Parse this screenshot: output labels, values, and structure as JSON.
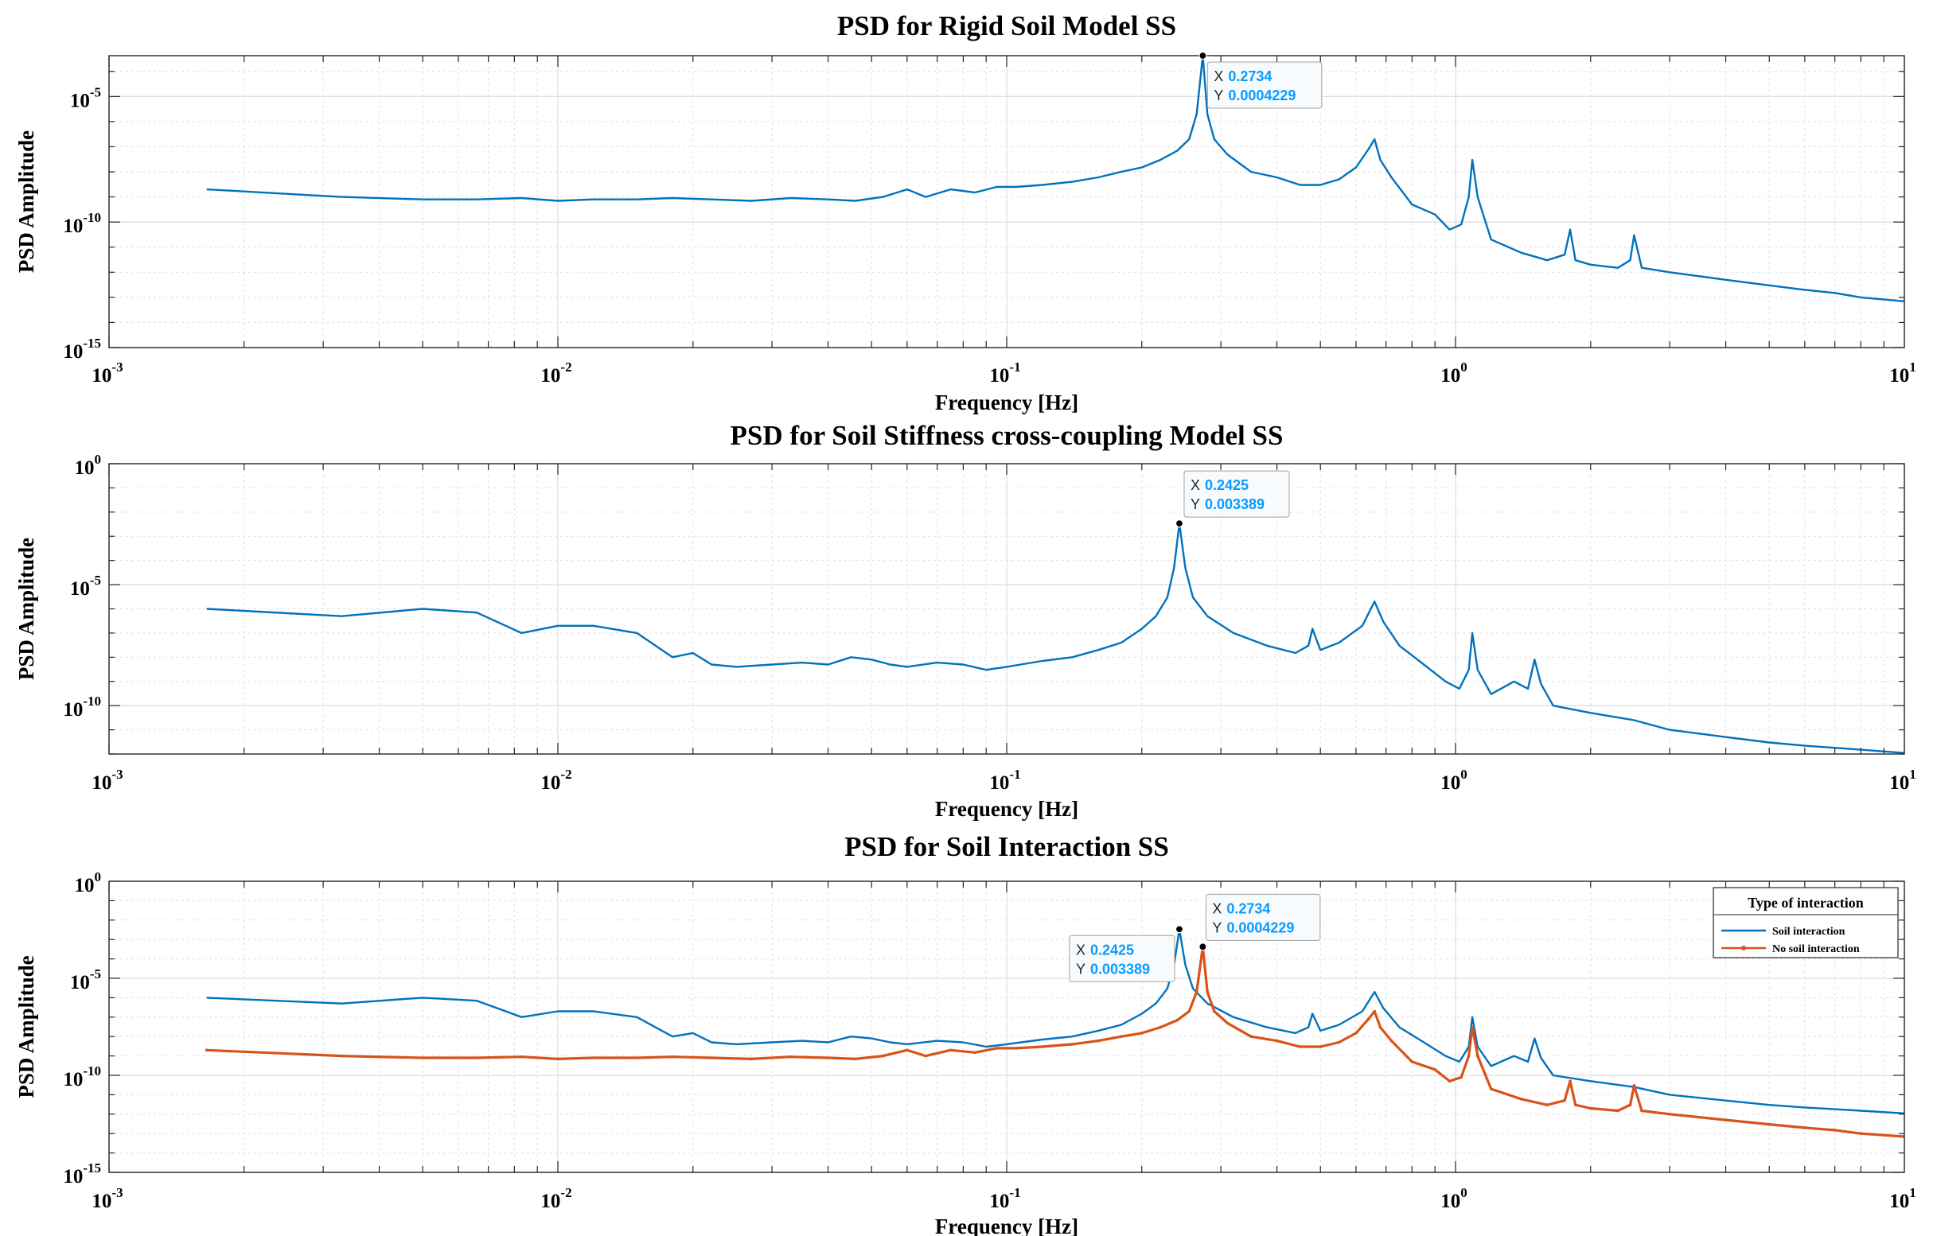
{
  "colors": {
    "soil_interaction": "#0072bd",
    "no_soil_interaction": "#d95319",
    "datatip_value": "#0a9aff",
    "grid": "#dfdfdf",
    "axes": "#262626"
  },
  "chart_data": [
    {
      "type": "line",
      "title": "PSD for Rigid Soil Model SS",
      "xlabel": "Frequency [Hz]",
      "ylabel": "PSD Amplitude",
      "xscale": "log",
      "yscale": "log",
      "xlim": [
        0.001,
        10
      ],
      "ylim": [
        1e-15,
        0.0004229
      ],
      "x_ticks": [
        "10^-3",
        "10^-2",
        "10^-1",
        "10^0",
        "10^1"
      ],
      "y_ticks": [
        "10^-15",
        "10^-10",
        "10^-5"
      ],
      "grid": true,
      "series": [
        {
          "color": "#0072bd",
          "x": [
            0.00165,
            0.0033,
            0.005,
            0.0066,
            0.0083,
            0.01,
            0.012,
            0.015,
            0.018,
            0.022,
            0.027,
            0.033,
            0.04,
            0.046,
            0.053,
            0.06,
            0.066,
            0.075,
            0.085,
            0.095,
            0.105,
            0.12,
            0.14,
            0.16,
            0.18,
            0.2,
            0.22,
            0.24,
            0.255,
            0.265,
            0.2734,
            0.28,
            0.29,
            0.31,
            0.35,
            0.4,
            0.45,
            0.5,
            0.55,
            0.6,
            0.64,
            0.66,
            0.68,
            0.72,
            0.8,
            0.9,
            0.97,
            1.03,
            1.07,
            1.09,
            1.12,
            1.2,
            1.4,
            1.6,
            1.75,
            1.8,
            1.85,
            2.0,
            2.3,
            2.45,
            2.5,
            2.6,
            3.0,
            4.0,
            5.0,
            6.0,
            7.0,
            8.0,
            10.0
          ],
          "y": [
            2e-09,
            1e-09,
            8e-10,
            8e-10,
            9e-10,
            7e-10,
            8e-10,
            8e-10,
            9e-10,
            8e-10,
            7e-10,
            9e-10,
            8e-10,
            7e-10,
            1e-09,
            2e-09,
            1e-09,
            2e-09,
            1.5e-09,
            2.5e-09,
            2.5e-09,
            3e-09,
            4e-09,
            6e-09,
            1e-08,
            1.5e-08,
            3e-08,
            7e-08,
            2e-07,
            2e-06,
            0.0004229,
            2e-06,
            2e-07,
            5e-08,
            1e-08,
            6e-09,
            3e-09,
            3e-09,
            5e-09,
            1.5e-08,
            8e-08,
            2e-07,
            3e-08,
            6e-09,
            5e-10,
            2e-10,
            5e-11,
            8e-11,
            1e-09,
            3e-08,
            1e-09,
            2e-11,
            6e-12,
            3e-12,
            5e-12,
            5e-11,
            3e-12,
            2e-12,
            1.5e-12,
            3e-12,
            3e-11,
            1.5e-12,
            1e-12,
            5e-13,
            3e-13,
            2e-13,
            1.5e-13,
            1e-13,
            7e-14
          ]
        }
      ],
      "datatips": [
        {
          "x_label": "X",
          "x_value": "0.2734",
          "y_label": "Y",
          "y_value": "0.0004229",
          "x": 0.2734,
          "y": 0.0004229
        }
      ]
    },
    {
      "type": "line",
      "title": "PSD for Soil Stiffness cross-coupling Model SS",
      "xlabel": "Frequency [Hz]",
      "ylabel": "PSD Amplitude",
      "xscale": "log",
      "yscale": "log",
      "xlim": [
        0.001,
        10
      ],
      "ylim": [
        1e-12,
        1
      ],
      "x_ticks": [
        "10^-3",
        "10^-2",
        "10^-1",
        "10^0",
        "10^1"
      ],
      "y_ticks": [
        "10^-10",
        "10^-5",
        "10^0"
      ],
      "grid": true,
      "series": [
        {
          "color": "#0072bd",
          "x": [
            0.00165,
            0.0033,
            0.005,
            0.0066,
            0.0083,
            0.01,
            0.012,
            0.015,
            0.018,
            0.02,
            0.022,
            0.025,
            0.03,
            0.035,
            0.04,
            0.045,
            0.05,
            0.055,
            0.06,
            0.07,
            0.08,
            0.09,
            0.1,
            0.12,
            0.14,
            0.16,
            0.18,
            0.2,
            0.215,
            0.228,
            0.236,
            0.2425,
            0.25,
            0.26,
            0.28,
            0.32,
            0.38,
            0.44,
            0.47,
            0.48,
            0.5,
            0.55,
            0.62,
            0.66,
            0.69,
            0.75,
            0.85,
            0.95,
            1.02,
            1.07,
            1.09,
            1.12,
            1.2,
            1.35,
            1.45,
            1.5,
            1.55,
            1.65,
            2.0,
            2.5,
            3.0,
            4.0,
            5.0,
            6.0,
            7.0,
            8.0,
            10.0
          ],
          "y": [
            1e-06,
            5e-07,
            1e-06,
            7e-07,
            1e-07,
            2e-07,
            2e-07,
            1e-07,
            1e-08,
            1.5e-08,
            5e-09,
            4e-09,
            5e-09,
            6e-09,
            5e-09,
            1e-08,
            8e-09,
            5e-09,
            4e-09,
            6e-09,
            5e-09,
            3e-09,
            4e-09,
            7e-09,
            1e-08,
            2e-08,
            4e-08,
            1.5e-07,
            5e-07,
            3e-06,
            5e-05,
            0.003389,
            5e-05,
            3e-06,
            5e-07,
            1e-07,
            3e-08,
            1.5e-08,
            3e-08,
            1.5e-07,
            2e-08,
            4e-08,
            2e-07,
            2e-06,
            3e-07,
            3e-08,
            5e-09,
            1e-09,
            5e-10,
            3e-09,
            1e-07,
            3e-09,
            3e-10,
            1e-09,
            5e-10,
            8e-09,
            8e-10,
            1e-10,
            5e-11,
            2.5e-11,
            1e-11,
            5e-12,
            3e-12,
            2.2e-12,
            1.8e-12,
            1.5e-12,
            1.1e-12
          ]
        }
      ],
      "datatips": [
        {
          "x_label": "X",
          "x_value": "0.2425",
          "y_label": "Y",
          "y_value": "0.003389",
          "x": 0.2425,
          "y": 0.003389
        }
      ]
    },
    {
      "type": "line",
      "title": "PSD for Soil Interaction SS",
      "xlabel": "Frequency [Hz]",
      "ylabel": "PSD Amplitude",
      "xscale": "log",
      "yscale": "log",
      "xlim": [
        0.001,
        10
      ],
      "ylim": [
        1e-15,
        1
      ],
      "x_ticks": [
        "10^-3",
        "10^-2",
        "10^-1",
        "10^0",
        "10^1"
      ],
      "y_ticks": [
        "10^-15",
        "10^-10",
        "10^-5",
        "10^0"
      ],
      "grid": true,
      "legend": {
        "title": "Type of interaction",
        "position": "top-right",
        "entries": [
          "Soil interaction",
          "No soil interaction"
        ]
      },
      "series": [
        {
          "name": "Soil interaction",
          "color": "#0072bd",
          "x": [
            0.00165,
            0.0033,
            0.005,
            0.0066,
            0.0083,
            0.01,
            0.012,
            0.015,
            0.018,
            0.02,
            0.022,
            0.025,
            0.03,
            0.035,
            0.04,
            0.045,
            0.05,
            0.055,
            0.06,
            0.07,
            0.08,
            0.09,
            0.1,
            0.12,
            0.14,
            0.16,
            0.18,
            0.2,
            0.215,
            0.228,
            0.236,
            0.2425,
            0.25,
            0.26,
            0.28,
            0.32,
            0.38,
            0.44,
            0.47,
            0.48,
            0.5,
            0.55,
            0.62,
            0.66,
            0.69,
            0.75,
            0.85,
            0.95,
            1.02,
            1.07,
            1.09,
            1.12,
            1.2,
            1.35,
            1.45,
            1.5,
            1.55,
            1.65,
            2.0,
            2.5,
            3.0,
            4.0,
            5.0,
            6.0,
            7.0,
            8.0,
            10.0
          ],
          "y": [
            1e-06,
            5e-07,
            1e-06,
            7e-07,
            1e-07,
            2e-07,
            2e-07,
            1e-07,
            1e-08,
            1.5e-08,
            5e-09,
            4e-09,
            5e-09,
            6e-09,
            5e-09,
            1e-08,
            8e-09,
            5e-09,
            4e-09,
            6e-09,
            5e-09,
            3e-09,
            4e-09,
            7e-09,
            1e-08,
            2e-08,
            4e-08,
            1.5e-07,
            5e-07,
            3e-06,
            5e-05,
            0.003389,
            5e-05,
            3e-06,
            5e-07,
            1e-07,
            3e-08,
            1.5e-08,
            3e-08,
            1.5e-07,
            2e-08,
            4e-08,
            2e-07,
            2e-06,
            3e-07,
            3e-08,
            5e-09,
            1e-09,
            5e-10,
            3e-09,
            1e-07,
            3e-09,
            3e-10,
            1e-09,
            5e-10,
            8e-09,
            8e-10,
            1e-10,
            5e-11,
            2.5e-11,
            1e-11,
            5e-12,
            3e-12,
            2.2e-12,
            1.8e-12,
            1.5e-12,
            1.1e-12
          ]
        },
        {
          "name": "No soil interaction",
          "color": "#d95319",
          "x": [
            0.00165,
            0.0033,
            0.005,
            0.0066,
            0.0083,
            0.01,
            0.012,
            0.015,
            0.018,
            0.022,
            0.027,
            0.033,
            0.04,
            0.046,
            0.053,
            0.06,
            0.066,
            0.075,
            0.085,
            0.095,
            0.105,
            0.12,
            0.14,
            0.16,
            0.18,
            0.2,
            0.22,
            0.24,
            0.255,
            0.265,
            0.2734,
            0.28,
            0.29,
            0.31,
            0.35,
            0.4,
            0.45,
            0.5,
            0.55,
            0.6,
            0.64,
            0.66,
            0.68,
            0.72,
            0.8,
            0.9,
            0.97,
            1.03,
            1.07,
            1.09,
            1.12,
            1.2,
            1.4,
            1.6,
            1.75,
            1.8,
            1.85,
            2.0,
            2.3,
            2.45,
            2.5,
            2.6,
            3.0,
            4.0,
            5.0,
            6.0,
            7.0,
            8.0,
            10.0
          ],
          "y": [
            2e-09,
            1e-09,
            8e-10,
            8e-10,
            9e-10,
            7e-10,
            8e-10,
            8e-10,
            9e-10,
            8e-10,
            7e-10,
            9e-10,
            8e-10,
            7e-10,
            1e-09,
            2e-09,
            1e-09,
            2e-09,
            1.5e-09,
            2.5e-09,
            2.5e-09,
            3e-09,
            4e-09,
            6e-09,
            1e-08,
            1.5e-08,
            3e-08,
            7e-08,
            2e-07,
            2e-06,
            0.0004229,
            2e-06,
            2e-07,
            5e-08,
            1e-08,
            6e-09,
            3e-09,
            3e-09,
            5e-09,
            1.5e-08,
            8e-08,
            2e-07,
            3e-08,
            6e-09,
            5e-10,
            2e-10,
            5e-11,
            8e-11,
            1e-09,
            3e-08,
            1e-09,
            2e-11,
            6e-12,
            3e-12,
            5e-12,
            5e-11,
            3e-12,
            2e-12,
            1.5e-12,
            3e-12,
            3e-11,
            1.5e-12,
            1e-12,
            5e-13,
            3e-13,
            2e-13,
            1.5e-13,
            1e-13,
            7e-14
          ]
        }
      ],
      "datatips": [
        {
          "x_label": "X",
          "x_value": "0.2425",
          "y_label": "Y",
          "y_value": "0.003389",
          "x": 0.2425,
          "y": 0.003389
        },
        {
          "x_label": "X",
          "x_value": "0.2734",
          "y_label": "Y",
          "y_value": "0.0004229",
          "x": 0.2734,
          "y": 0.0004229
        }
      ]
    }
  ]
}
